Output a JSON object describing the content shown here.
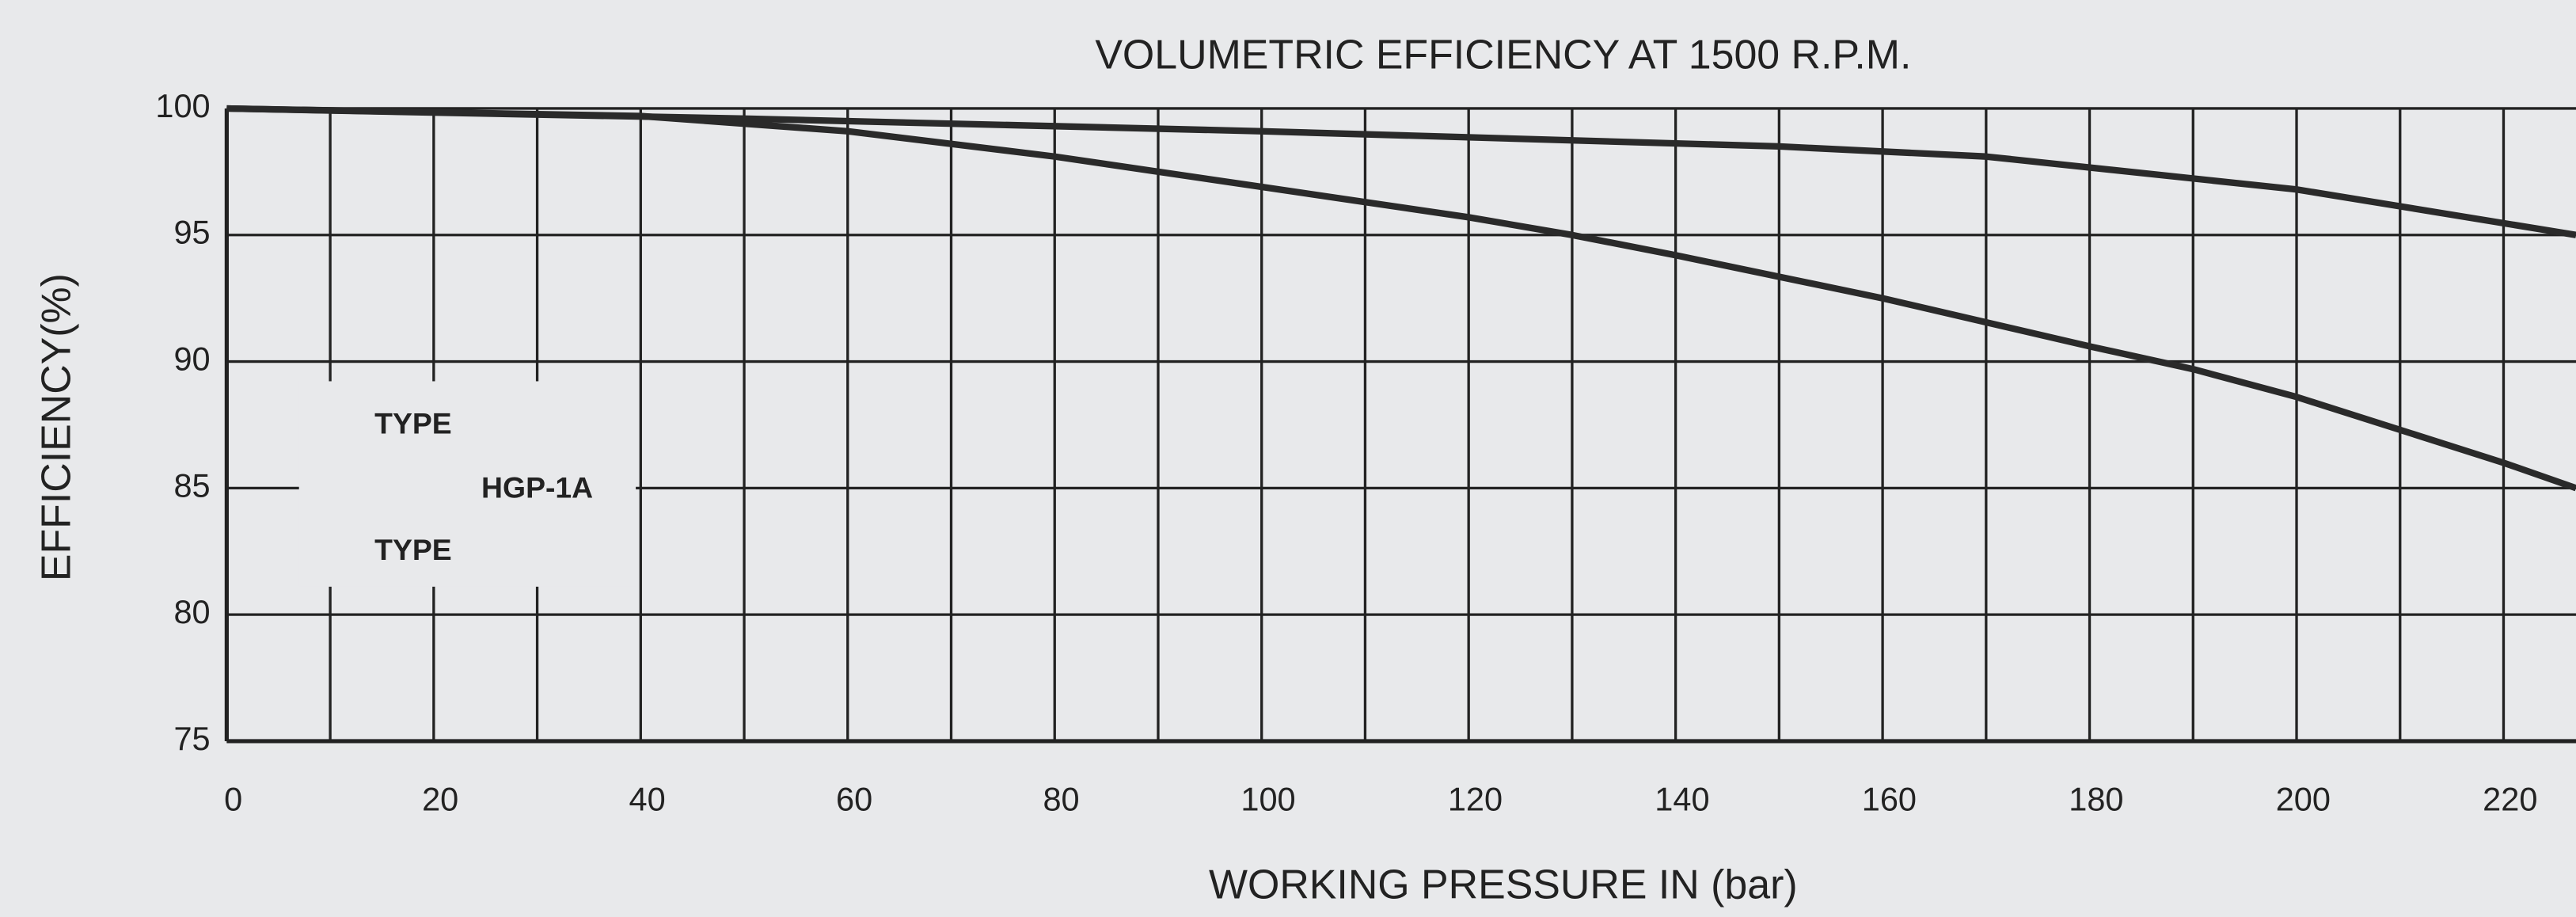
{
  "chart_data": {
    "type": "line",
    "title": "VOLUMETRIC EFFICIENCY AT 1500 R.P.M.",
    "xlabel": "WORKING PRESSURE IN (bar)",
    "ylabel": "EFFICIENCY(%)",
    "annotations": [
      "TYPE",
      "HGP-1A",
      "TYPE"
    ],
    "xlim": [
      0,
      227
    ],
    "ylim": [
      75,
      100
    ],
    "xticks": [
      0,
      20,
      40,
      60,
      80,
      100,
      120,
      140,
      160,
      180,
      200,
      220
    ],
    "xminorticks": [
      10,
      30,
      50,
      70,
      90,
      110,
      130,
      150,
      170,
      190,
      210
    ],
    "yticks": [
      75,
      80,
      85,
      90,
      95,
      100
    ],
    "grid": true,
    "series": [
      {
        "color": "#2a2a2a",
        "x": [
          0,
          50,
          100,
          150,
          170,
          200,
          227
        ],
        "values": [
          100,
          99.6,
          99.1,
          98.5,
          98.1,
          96.8,
          95
        ]
      },
      {
        "color": "#2a2a2a",
        "x": [
          0,
          40,
          60,
          80,
          100,
          120,
          130,
          140,
          160,
          180,
          190,
          200,
          220,
          227
        ],
        "values": [
          100,
          99.7,
          99.1,
          98.1,
          96.9,
          95.7,
          95,
          94.2,
          92.5,
          90.6,
          89.7,
          88.6,
          86,
          85
        ]
      }
    ]
  }
}
